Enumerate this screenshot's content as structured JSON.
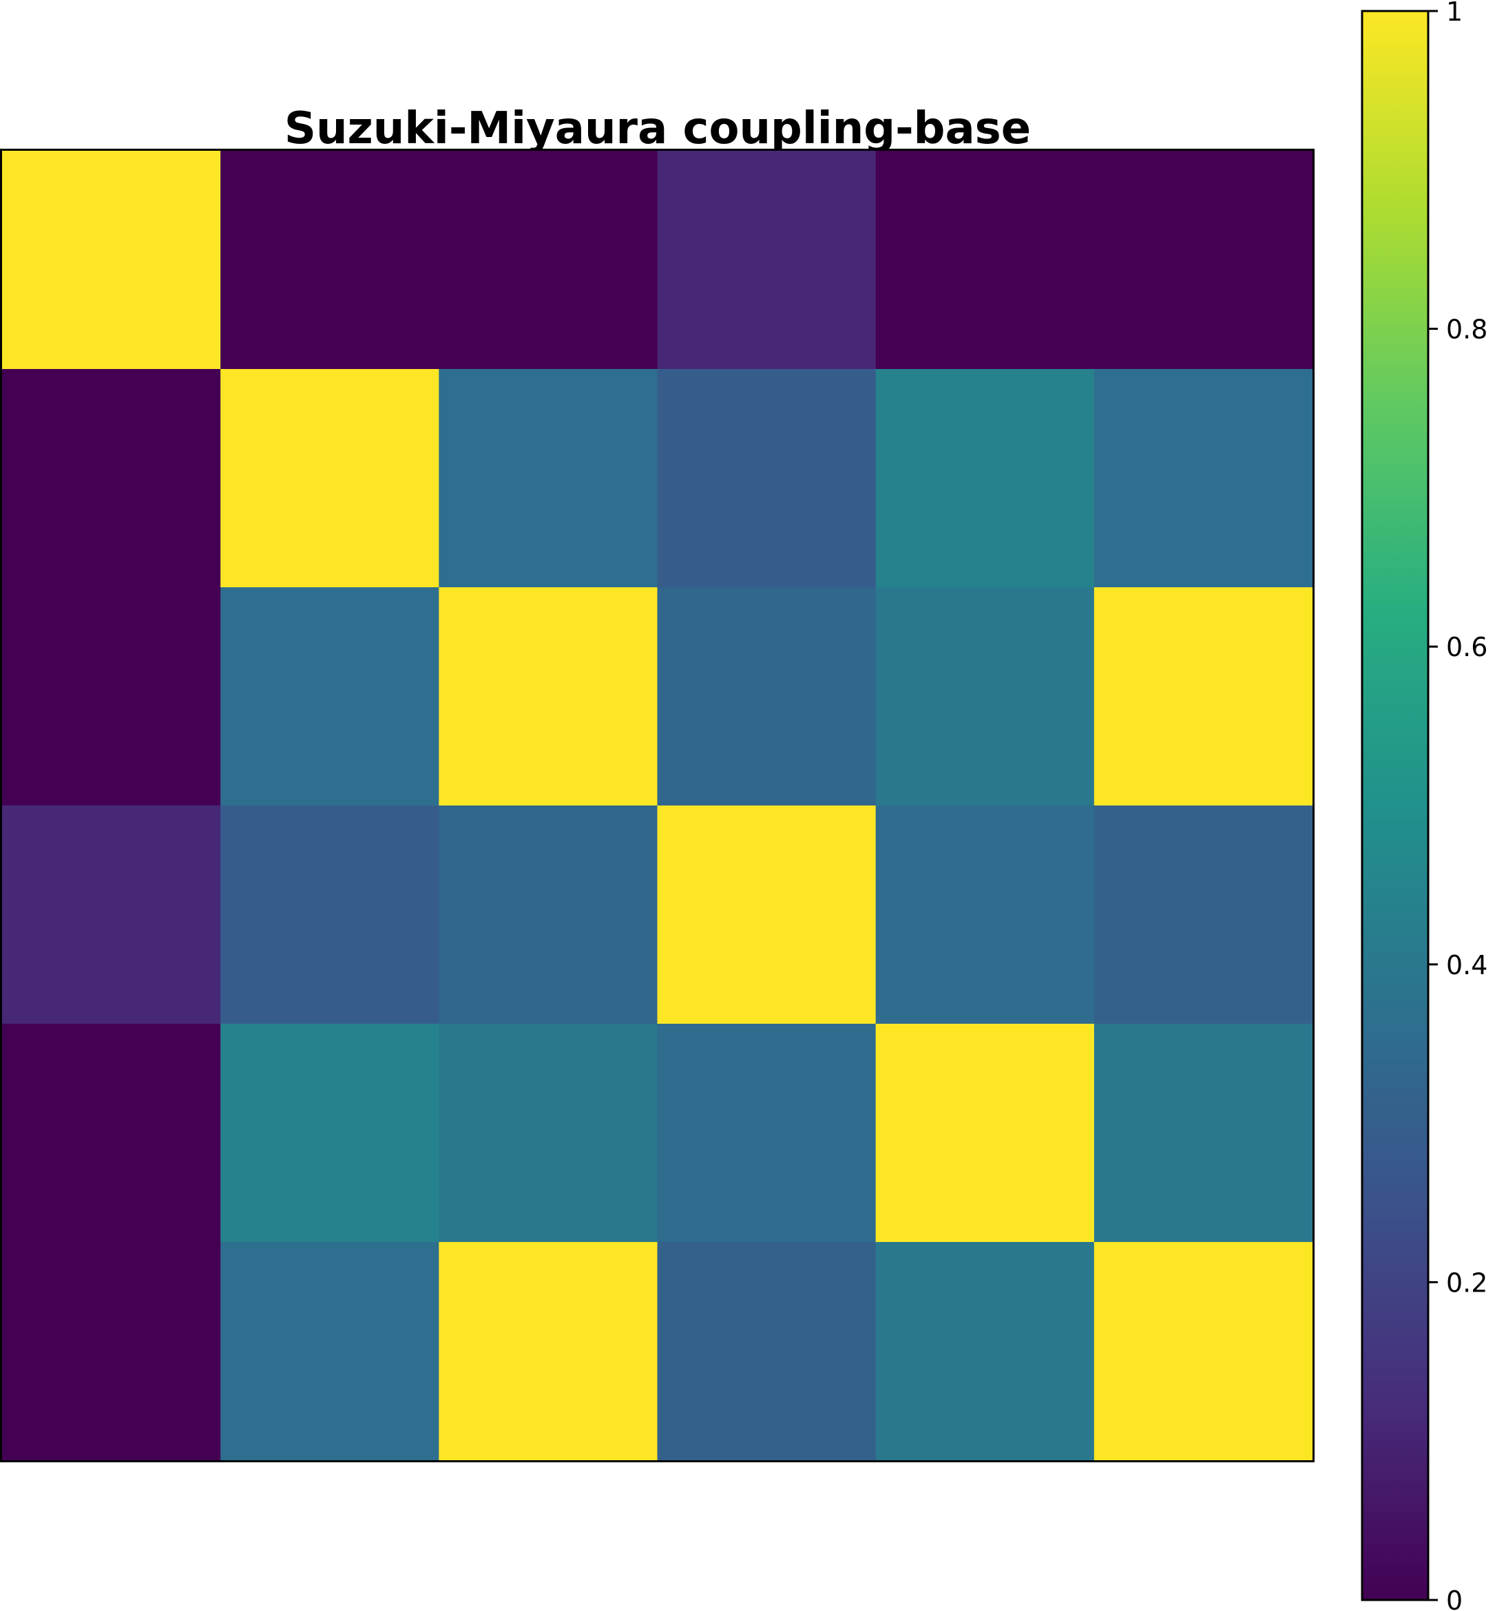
{
  "chart_data": {
    "type": "heatmap",
    "title": "Suzuki-Miyaura coupling-base",
    "xlabel": "",
    "ylabel": "",
    "rows": 6,
    "cols": 6,
    "values": [
      [
        1.0,
        0.0,
        0.0,
        0.11,
        0.0,
        0.0
      ],
      [
        0.0,
        1.0,
        0.36,
        0.29,
        0.44,
        0.36
      ],
      [
        0.0,
        0.36,
        1.0,
        0.33,
        0.4,
        1.0
      ],
      [
        0.11,
        0.29,
        0.33,
        1.0,
        0.35,
        0.31
      ],
      [
        0.0,
        0.44,
        0.4,
        0.35,
        1.0,
        0.4
      ],
      [
        0.0,
        0.36,
        1.0,
        0.31,
        0.4,
        1.0
      ]
    ],
    "colormap": "viridis",
    "vmin": 0,
    "vmax": 1,
    "grid": false,
    "colorbar": {
      "ticks": [
        0,
        0.2,
        0.4,
        0.6,
        0.8,
        1
      ],
      "tick_labels": [
        "0",
        "0.2",
        "0.4",
        "0.6",
        "0.8",
        "1"
      ]
    }
  }
}
